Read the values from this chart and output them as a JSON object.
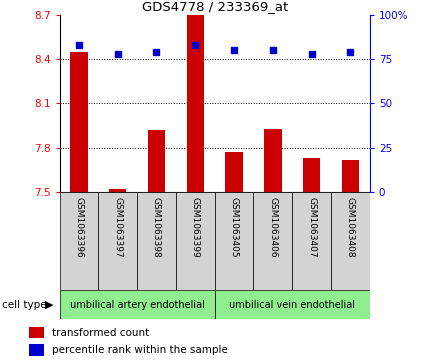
{
  "title": "GDS4778 / 233369_at",
  "samples": [
    "GSM1063396",
    "GSM1063397",
    "GSM1063398",
    "GSM1063399",
    "GSM1063405",
    "GSM1063406",
    "GSM1063407",
    "GSM1063408"
  ],
  "bar_values": [
    8.45,
    7.52,
    7.92,
    8.7,
    7.77,
    7.93,
    7.73,
    7.72
  ],
  "dot_values": [
    83,
    78,
    79,
    83,
    80,
    80,
    78,
    79
  ],
  "bar_bottom": 7.5,
  "ylim_left": [
    7.5,
    8.7
  ],
  "ylim_right": [
    0,
    100
  ],
  "yticks_left": [
    7.5,
    7.8,
    8.1,
    8.4,
    8.7
  ],
  "ytick_labels_left": [
    "7.5",
    "7.8",
    "8.1",
    "8.4",
    "8.7"
  ],
  "yticks_right": [
    0,
    25,
    50,
    75,
    100
  ],
  "ytick_labels_right": [
    "0",
    "25",
    "50",
    "75",
    "100%"
  ],
  "hlines": [
    7.8,
    8.1,
    8.4
  ],
  "bar_color": "#cc0000",
  "dot_color": "#0000cc",
  "group1_label": "umbilical artery endothelial",
  "group2_label": "umbilical vein endothelial",
  "group1_indices": [
    0,
    1,
    2,
    3
  ],
  "group2_indices": [
    4,
    5,
    6,
    7
  ],
  "cell_type_label": "cell type",
  "legend_bar_label": "transformed count",
  "legend_dot_label": "percentile rank within the sample",
  "group_bg_color": "#90ee90",
  "sample_bg_color": "#d3d3d3",
  "bar_width": 0.45
}
